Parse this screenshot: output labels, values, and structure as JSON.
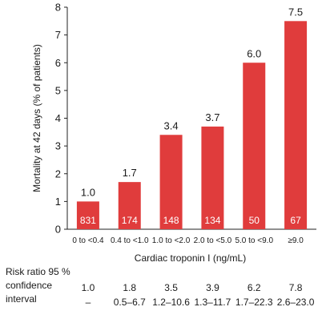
{
  "chart_data": {
    "type": "bar",
    "categories": [
      "0 to <0.4",
      "0.4 to <1.0",
      "1.0 to <2.0",
      "2.0 to <5.0",
      "5.0 to <9.0",
      "≥9.0"
    ],
    "values": [
      1.0,
      1.7,
      3.4,
      3.7,
      6.0,
      7.5
    ],
    "value_labels": [
      "1.0",
      "1.7",
      "3.4",
      "3.7",
      "6.0",
      "7.5"
    ],
    "n_patients": [
      "831",
      "174",
      "148",
      "134",
      "50",
      "67"
    ],
    "xlabel": "Cardiac troponin I (ng/mL)",
    "ylabel": "Mortality at 42 days (% of patients)",
    "ylim": [
      0,
      8
    ],
    "yticks": [
      "0",
      "1",
      "2",
      "3",
      "4",
      "5",
      "6",
      "7",
      "8"
    ],
    "bar_color": "#e03c3c",
    "grid": false
  },
  "risk_table": {
    "label_lines": [
      "Risk ratio 95 %",
      "confidence",
      "interval"
    ],
    "ratios": [
      "1.0",
      "1.8",
      "3.5",
      "3.9",
      "6.2",
      "7.8"
    ],
    "intervals": [
      "–",
      "0.5–6.7",
      "1.2–10.6",
      "1.3–11.7",
      "1.7–22.3",
      "2.6–23.0"
    ]
  }
}
